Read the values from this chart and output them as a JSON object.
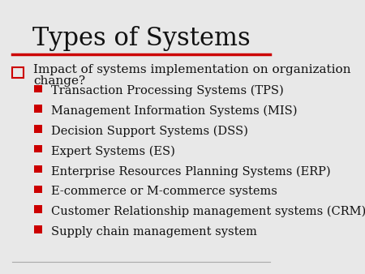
{
  "title": "Types of Systems",
  "title_fontsize": 22,
  "title_font": "serif",
  "background_color": "#e8e8e8",
  "title_underline_color": "#cc0000",
  "bullet1_marker_color": "#cc0000",
  "bullet2_marker_color": "#cc0000",
  "bullet1_line1": "Impact of systems implementation on organization",
  "bullet1_line2": "change?",
  "bullet1_fontsize": 11,
  "bullet2_fontsize": 10.5,
  "bullet2_items": [
    "Transaction Processing Systems (TPS)",
    "Management Information Systems (MIS)",
    "Decision Support Systems (DSS)",
    "Expert Systems (ES)",
    "Enterprise Resources Planning Systems (ERP)",
    "E-commerce or M-commerce systems",
    "Customer Relationship management systems (CRM)",
    "Supply chain management system"
  ],
  "text_color": "#111111",
  "bottom_line_color": "#aaaaaa",
  "top_line_color": "#cc0000"
}
